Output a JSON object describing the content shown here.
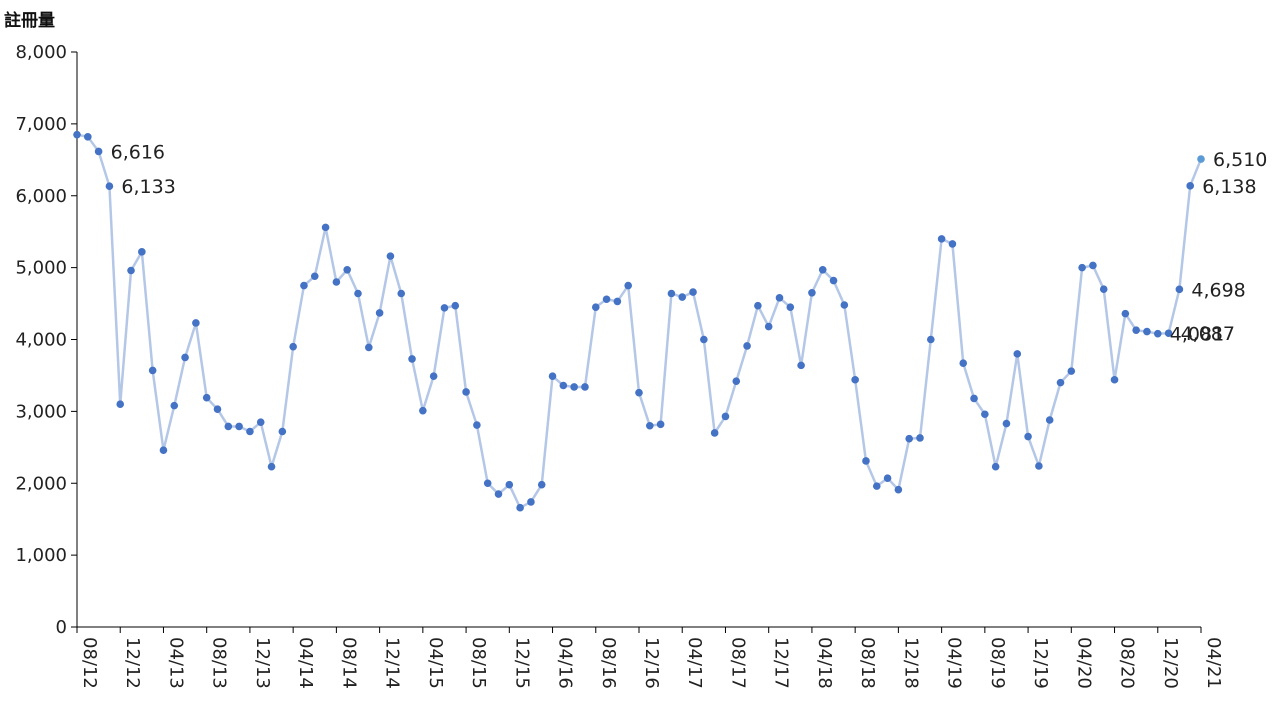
{
  "chart_data": {
    "type": "line",
    "title": "",
    "xlabel": "",
    "ylabel": "註冊量",
    "ylim": [
      0,
      8000
    ],
    "yticks": [
      0,
      1000,
      2000,
      3000,
      4000,
      5000,
      6000,
      7000,
      8000
    ],
    "ytick_labels": [
      "0",
      "1,000",
      "2,000",
      "3,000",
      "4,000",
      "5,000",
      "6,000",
      "7,000",
      "8,000"
    ],
    "xtick_labels": [
      "08/12",
      "12/12",
      "04/13",
      "08/13",
      "12/13",
      "04/14",
      "08/14",
      "12/14",
      "04/15",
      "08/15",
      "12/15",
      "04/16",
      "08/16",
      "12/16",
      "04/17",
      "08/17",
      "12/17",
      "04/18",
      "08/18",
      "12/18",
      "04/19",
      "08/19",
      "12/19",
      "04/20",
      "08/20",
      "12/20",
      "04/21"
    ],
    "x_start": "2012-08",
    "x_end": "2021-04",
    "grid": false,
    "legend": "none",
    "colors": {
      "line": "#b4c7e7",
      "marker": "#4472c4",
      "last_marker": "#5b9bd5",
      "axis": "#000000"
    },
    "series": [
      {
        "values": [
          6850,
          6820,
          6616,
          6133,
          3100,
          4960,
          5220,
          3570,
          2460,
          3080,
          3750,
          4230,
          3190,
          3030,
          2790,
          2790,
          2720,
          2850,
          2230,
          2720,
          3900,
          4750,
          4880,
          5560,
          4800,
          4970,
          4640,
          3890,
          4370,
          5160,
          4640,
          3730,
          3010,
          3490,
          4440,
          4470,
          3270,
          2810,
          2000,
          1850,
          1980,
          1660,
          1740,
          1980,
          3490,
          3360,
          3340,
          3340,
          4450,
          4560,
          4530,
          4750,
          3260,
          2800,
          2820,
          4640,
          4590,
          4660,
          4000,
          2700,
          2930,
          3420,
          3910,
          4470,
          4180,
          4580,
          4450,
          3640,
          4650,
          4970,
          4820,
          4480,
          3440,
          2310,
          1960,
          2070,
          1910,
          2620,
          2630,
          4000,
          5400,
          5330,
          3670,
          3180,
          2960,
          2230,
          2830,
          3800,
          2650,
          2240,
          2880,
          3400,
          3560,
          5000,
          5030,
          4700,
          3440,
          4360,
          4130,
          4110,
          4081,
          4087,
          4698,
          6138,
          6510
        ]
      }
    ],
    "data_labels": [
      {
        "index": 2,
        "text": "6,616"
      },
      {
        "index": 3,
        "text": "6,133"
      },
      {
        "index": 100,
        "text": "4,081"
      },
      {
        "index": 101,
        "text": "4,087"
      },
      {
        "index": 102,
        "text": "4,698"
      },
      {
        "index": 103,
        "text": "6,138"
      },
      {
        "index": 104,
        "text": "6,510"
      }
    ]
  }
}
